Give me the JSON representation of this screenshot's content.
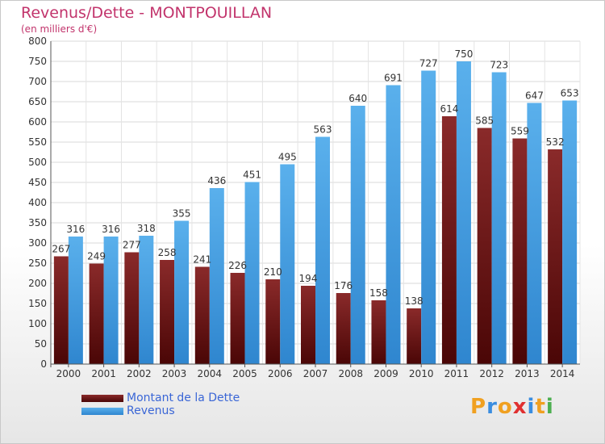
{
  "header": {
    "title": "Revenus/Dette - MONTPOUILLAN",
    "subtitle": "(en milliers d'€)"
  },
  "colors": {
    "dette": "#7a1a1a",
    "revenus": "#4aa3e6",
    "title": "#c2346c",
    "legend_text": "#3a66d6"
  },
  "chart_data": {
    "type": "bar",
    "title": "Revenus/Dette - MONTPOUILLAN",
    "subtitle": "(en milliers d'€)",
    "xlabel": "",
    "ylabel": "",
    "ylim": [
      0,
      800
    ],
    "yticks": [
      0,
      50,
      100,
      150,
      200,
      250,
      300,
      350,
      400,
      450,
      500,
      550,
      600,
      650,
      700,
      750,
      800
    ],
    "grid": true,
    "legend_position": "bottom-left",
    "categories": [
      "2000",
      "2001",
      "2002",
      "2003",
      "2004",
      "2005",
      "2006",
      "2007",
      "2008",
      "2009",
      "2010",
      "2011",
      "2012",
      "2013",
      "2014"
    ],
    "series": [
      {
        "name": "Montant de la Dette",
        "values": [
          267,
          249,
          277,
          258,
          241,
          226,
          210,
          194,
          176,
          158,
          138,
          614,
          585,
          559,
          532
        ]
      },
      {
        "name": "Revenus",
        "values": [
          316,
          316,
          318,
          355,
          436,
          451,
          495,
          563,
          640,
          691,
          727,
          750,
          723,
          647,
          653
        ]
      }
    ]
  },
  "legend": {
    "items": [
      {
        "label": "Montant de la Dette"
      },
      {
        "label": "Revenus"
      }
    ]
  },
  "logo": {
    "letters": [
      "P",
      "r",
      "o",
      "x",
      "i",
      "t",
      "i"
    ],
    "colors": [
      "#f0a020",
      "#3a8de0",
      "#f0a020",
      "#e03030",
      "#3a8de0",
      "#f0a020",
      "#4caf50"
    ]
  }
}
